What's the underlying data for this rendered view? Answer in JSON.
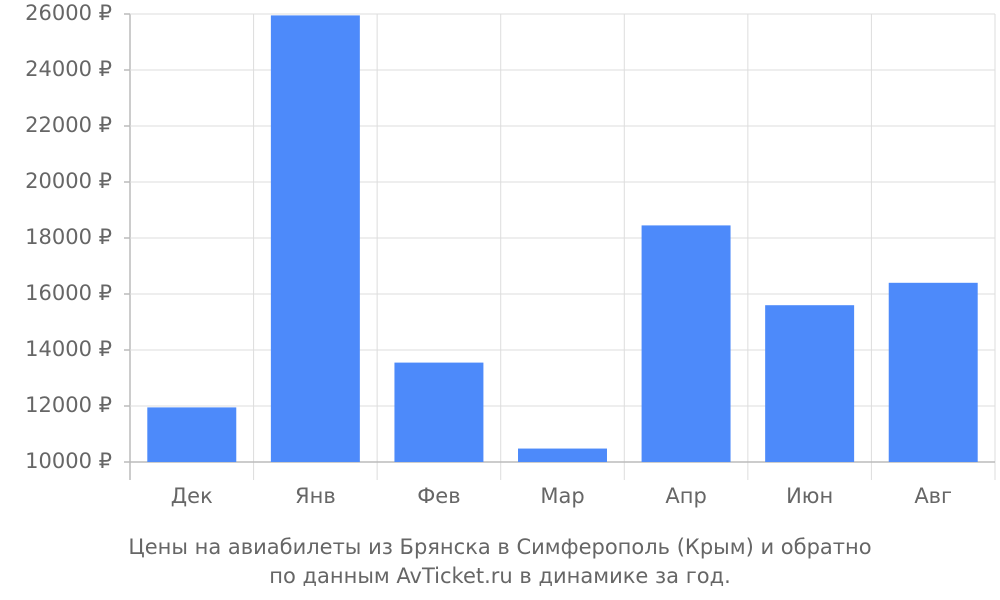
{
  "chart_data": {
    "type": "bar",
    "title": [
      "Цены на авиабилеты из Брянска в Симферополь (Крым) и обратно",
      "по данным AvTicket.ru в динамике за год."
    ],
    "categories": [
      "Дек",
      "Янв",
      "Фев",
      "Мар",
      "Апр",
      "Июн",
      "Авг"
    ],
    "values": [
      11950,
      25950,
      13550,
      10480,
      18450,
      15600,
      16400
    ],
    "color": "#4d8afa",
    "ylim": [
      10000,
      26000
    ],
    "yticks": [
      {
        "value": 10000,
        "label": "10000 ₽"
      },
      {
        "value": 12000,
        "label": "12000 ₽"
      },
      {
        "value": 14000,
        "label": "14000 ₽"
      },
      {
        "value": 16000,
        "label": "16000 ₽"
      },
      {
        "value": 18000,
        "label": "18000 ₽"
      },
      {
        "value": 20000,
        "label": "20000 ₽"
      },
      {
        "value": 22000,
        "label": "22000 ₽"
      },
      {
        "value": 24000,
        "label": "24000 ₽"
      },
      {
        "value": 26000,
        "label": "26000 ₽"
      }
    ],
    "grid": true
  }
}
